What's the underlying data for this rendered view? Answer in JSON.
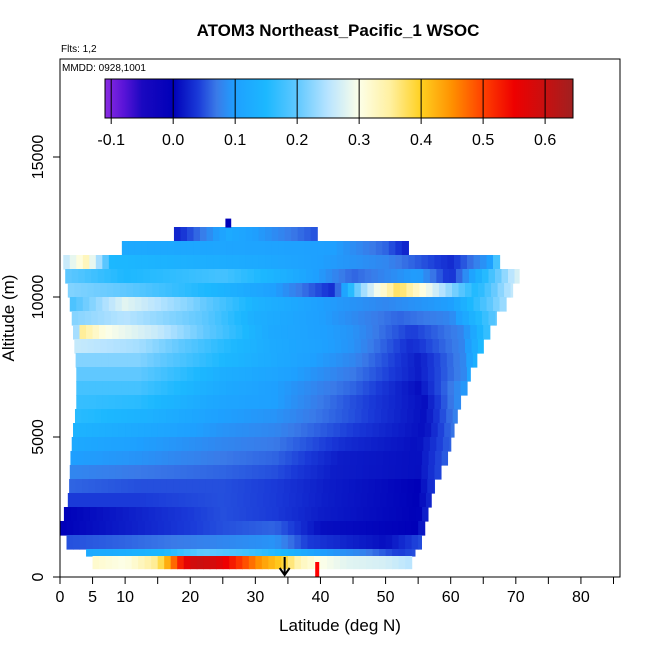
{
  "chart_data": {
    "type": "heatmap",
    "title": "ATOM3 Northeast_Pacific_1 WSOC",
    "subtitle_flights": "Flts: 1,2",
    "subtitle_dates": "MMDD: 0928,1001",
    "xlabel": "Latitude (deg N)",
    "ylabel": "Altitude (m)",
    "xlim": [
      0,
      86
    ],
    "ylim": [
      0,
      18500
    ],
    "x_ticks": [
      {
        "value": 0,
        "label": "0"
      },
      {
        "value": 5,
        "label": "5"
      },
      {
        "value": 10,
        "label": "10"
      },
      {
        "value": 20,
        "label": "20"
      },
      {
        "value": 30,
        "label": "30"
      },
      {
        "value": 40,
        "label": "40"
      },
      {
        "value": 50,
        "label": "50"
      },
      {
        "value": 60,
        "label": "60"
      },
      {
        "value": 70,
        "label": "70"
      },
      {
        "value": 80,
        "label": "80"
      }
    ],
    "x_minor_ticks": [
      15,
      25,
      35,
      45,
      55,
      65,
      75,
      85
    ],
    "y_ticks": [
      {
        "value": 0,
        "label": "0"
      },
      {
        "value": 5000,
        "label": "5000"
      },
      {
        "value": 10000,
        "label": "10000"
      },
      {
        "value": 15000,
        "label": "15000"
      }
    ],
    "colorbar": {
      "range": [
        -0.11,
        0.645
      ],
      "ticks": [
        {
          "value": -0.1,
          "label": "-0.1"
        },
        {
          "value": 0.0,
          "label": "0.0"
        },
        {
          "value": 0.1,
          "label": "0.1"
        },
        {
          "value": 0.2,
          "label": "0.2"
        },
        {
          "value": 0.3,
          "label": "0.3"
        },
        {
          "value": 0.4,
          "label": "0.4"
        },
        {
          "value": 0.5,
          "label": "0.5"
        },
        {
          "value": 0.6,
          "label": "0.6"
        }
      ],
      "stops": [
        [
          -0.11,
          "#8a2be2"
        ],
        [
          -0.08,
          "#5a14d8"
        ],
        [
          -0.05,
          "#1a08c0"
        ],
        [
          0.0,
          "#0000b8"
        ],
        [
          0.04,
          "#1a3ad8"
        ],
        [
          0.07,
          "#3a7ae8"
        ],
        [
          0.1,
          "#1ea0ff"
        ],
        [
          0.15,
          "#1cb8ff"
        ],
        [
          0.2,
          "#60c8ff"
        ],
        [
          0.25,
          "#b8e4ff"
        ],
        [
          0.3,
          "#fdffe8"
        ],
        [
          0.35,
          "#fff0a0"
        ],
        [
          0.4,
          "#ffd020"
        ],
        [
          0.45,
          "#ff9000"
        ],
        [
          0.5,
          "#ff4000"
        ],
        [
          0.55,
          "#ee0000"
        ],
        [
          0.6,
          "#c81010"
        ],
        [
          0.645,
          "#a02020"
        ]
      ]
    },
    "markers": {
      "arrow_lat": 34.5,
      "red_bar_lat": 39.5
    },
    "rows": [
      {
        "alt_min": 12000,
        "alt_max": 12500,
        "lat_min": 17.5,
        "lat_max": 39.5,
        "values": [
          [
            17.5,
            0.02
          ],
          [
            26,
            0.12
          ],
          [
            39.5,
            0.05
          ]
        ]
      },
      {
        "alt_min": 11500,
        "alt_max": 12000,
        "lat_min": 9.5,
        "lat_max": 53.5,
        "values": [
          [
            9.5,
            0.12
          ],
          [
            28,
            0.11
          ],
          [
            42,
            0.1
          ],
          [
            50,
            0.06
          ],
          [
            53.5,
            0.02
          ]
        ]
      },
      {
        "alt_min": 11000,
        "alt_max": 11500,
        "lat_min": 0.5,
        "lat_max": 67.5,
        "values": [
          [
            0.5,
            0.25
          ],
          [
            4,
            0.33
          ],
          [
            8,
            0.15
          ],
          [
            30,
            0.12
          ],
          [
            50,
            0.08
          ],
          [
            60,
            0.03
          ],
          [
            66,
            0.1
          ],
          [
            67.5,
            0.22
          ]
        ]
      },
      {
        "alt_min": 10500,
        "alt_max": 11000,
        "lat_min": 0.8,
        "lat_max": 70.5,
        "values": [
          [
            0.8,
            0.2
          ],
          [
            10,
            0.15
          ],
          [
            25,
            0.18
          ],
          [
            35,
            0.13
          ],
          [
            45,
            0.06
          ],
          [
            55,
            0.1
          ],
          [
            60,
            0.03
          ],
          [
            65,
            0.15
          ],
          [
            70.5,
            0.28
          ]
        ]
      },
      {
        "alt_min": 10000,
        "alt_max": 10500,
        "lat_min": 1.2,
        "lat_max": 69.5,
        "values": [
          [
            1.2,
            0.22
          ],
          [
            10,
            0.2
          ],
          [
            25,
            0.14
          ],
          [
            33,
            0.1
          ],
          [
            42,
            0.03
          ],
          [
            46,
            0.22
          ],
          [
            52,
            0.38
          ],
          [
            58,
            0.26
          ],
          [
            64,
            0.15
          ],
          [
            69.5,
            0.26
          ]
        ]
      },
      {
        "alt_min": 9500,
        "alt_max": 10000,
        "lat_min": 1.5,
        "lat_max": 68.5,
        "values": [
          [
            1.5,
            0.18
          ],
          [
            10,
            0.28
          ],
          [
            20,
            0.22
          ],
          [
            30,
            0.14
          ],
          [
            40,
            0.1
          ],
          [
            50,
            0.08
          ],
          [
            60,
            0.1
          ],
          [
            68.5,
            0.24
          ]
        ]
      },
      {
        "alt_min": 9000,
        "alt_max": 9500,
        "lat_min": 1.8,
        "lat_max": 67.0,
        "values": [
          [
            1.8,
            0.22
          ],
          [
            10,
            0.25
          ],
          [
            22,
            0.2
          ],
          [
            30,
            0.13
          ],
          [
            40,
            0.1
          ],
          [
            52,
            0.06
          ],
          [
            60,
            0.08
          ],
          [
            67.0,
            0.2
          ]
        ]
      },
      {
        "alt_min": 8500,
        "alt_max": 9000,
        "lat_min": 2.0,
        "lat_max": 66.0,
        "values": [
          [
            2.0,
            0.12
          ],
          [
            3,
            0.36
          ],
          [
            7,
            0.3
          ],
          [
            15,
            0.26
          ],
          [
            25,
            0.18
          ],
          [
            32,
            0.12
          ],
          [
            45,
            0.09
          ],
          [
            54,
            0.04
          ],
          [
            62,
            0.08
          ],
          [
            66.0,
            0.18
          ]
        ]
      },
      {
        "alt_min": 8000,
        "alt_max": 8500,
        "lat_min": 2.2,
        "lat_max": 65.0,
        "values": [
          [
            2.2,
            0.26
          ],
          [
            12,
            0.24
          ],
          [
            25,
            0.16
          ],
          [
            33,
            0.12
          ],
          [
            45,
            0.09
          ],
          [
            54,
            0.03
          ],
          [
            62,
            0.08
          ],
          [
            65.0,
            0.16
          ]
        ]
      },
      {
        "alt_min": 7500,
        "alt_max": 8000,
        "lat_min": 2.4,
        "lat_max": 64.0,
        "values": [
          [
            2.4,
            0.22
          ],
          [
            12,
            0.22
          ],
          [
            25,
            0.15
          ],
          [
            33,
            0.12
          ],
          [
            45,
            0.08
          ],
          [
            55,
            0.02
          ],
          [
            62,
            0.08
          ],
          [
            64.0,
            0.14
          ]
        ]
      },
      {
        "alt_min": 7000,
        "alt_max": 7500,
        "lat_min": 2.5,
        "lat_max": 63.0,
        "values": [
          [
            2.5,
            0.2
          ],
          [
            12,
            0.2
          ],
          [
            25,
            0.13
          ],
          [
            33,
            0.11
          ],
          [
            45,
            0.07
          ],
          [
            55,
            0.02
          ],
          [
            62,
            0.08
          ],
          [
            63.0,
            0.12
          ]
        ]
      },
      {
        "alt_min": 6500,
        "alt_max": 7000,
        "lat_min": 2.5,
        "lat_max": 62.5,
        "values": [
          [
            2.5,
            0.18
          ],
          [
            12,
            0.18
          ],
          [
            25,
            0.12
          ],
          [
            33,
            0.1
          ],
          [
            45,
            0.06
          ],
          [
            55,
            0.01
          ],
          [
            62.5,
            0.1
          ]
        ]
      },
      {
        "alt_min": 6000,
        "alt_max": 6500,
        "lat_min": 2.5,
        "lat_max": 61.5,
        "values": [
          [
            2.5,
            0.17
          ],
          [
            12,
            0.16
          ],
          [
            25,
            0.11
          ],
          [
            33,
            0.1
          ],
          [
            45,
            0.05
          ],
          [
            56,
            0.01
          ],
          [
            61.5,
            0.09
          ]
        ]
      },
      {
        "alt_min": 5500,
        "alt_max": 6000,
        "lat_min": 2.3,
        "lat_max": 61.0,
        "values": [
          [
            2.3,
            0.16
          ],
          [
            12,
            0.14
          ],
          [
            25,
            0.1
          ],
          [
            33,
            0.09
          ],
          [
            45,
            0.05
          ],
          [
            56,
            0.01
          ],
          [
            61.0,
            0.08
          ]
        ]
      },
      {
        "alt_min": 5000,
        "alt_max": 5500,
        "lat_min": 2.0,
        "lat_max": 60.5,
        "values": [
          [
            2.0,
            0.14
          ],
          [
            12,
            0.12
          ],
          [
            25,
            0.09
          ],
          [
            33,
            0.08
          ],
          [
            45,
            0.04
          ],
          [
            56,
            0.01
          ],
          [
            60.5,
            0.07
          ]
        ]
      },
      {
        "alt_min": 4500,
        "alt_max": 5000,
        "lat_min": 1.8,
        "lat_max": 60.0,
        "values": [
          [
            1.8,
            0.12
          ],
          [
            12,
            0.1
          ],
          [
            25,
            0.08
          ],
          [
            33,
            0.07
          ],
          [
            44,
            0.03
          ],
          [
            55,
            0.01
          ],
          [
            60.0,
            0.06
          ]
        ]
      },
      {
        "alt_min": 4000,
        "alt_max": 4500,
        "lat_min": 1.6,
        "lat_max": 59.5,
        "values": [
          [
            1.6,
            0.1
          ],
          [
            12,
            0.09
          ],
          [
            25,
            0.07
          ],
          [
            33,
            0.06
          ],
          [
            43,
            0.02
          ],
          [
            55,
            0.01
          ],
          [
            59.5,
            0.06
          ]
        ]
      },
      {
        "alt_min": 3500,
        "alt_max": 4000,
        "lat_min": 1.5,
        "lat_max": 58.5,
        "values": [
          [
            1.5,
            0.08
          ],
          [
            12,
            0.07
          ],
          [
            25,
            0.06
          ],
          [
            33,
            0.05
          ],
          [
            42,
            0.02
          ],
          [
            55,
            0.01
          ],
          [
            58.5,
            0.05
          ]
        ]
      },
      {
        "alt_min": 3000,
        "alt_max": 3500,
        "lat_min": 1.4,
        "lat_max": 57.5,
        "values": [
          [
            1.4,
            0.06
          ],
          [
            12,
            0.05
          ],
          [
            25,
            0.05
          ],
          [
            33,
            0.04
          ],
          [
            41,
            0.02
          ],
          [
            55,
            0.0
          ],
          [
            57.5,
            0.04
          ]
        ]
      },
      {
        "alt_min": 2500,
        "alt_max": 3000,
        "lat_min": 1.2,
        "lat_max": 57.0,
        "values": [
          [
            1.2,
            0.04
          ],
          [
            12,
            0.04
          ],
          [
            25,
            0.05
          ],
          [
            33,
            0.04
          ],
          [
            41,
            0.02
          ],
          [
            55,
            0.0
          ],
          [
            57.0,
            0.03
          ]
        ]
      },
      {
        "alt_min": 2000,
        "alt_max": 2500,
        "lat_min": 0.6,
        "lat_max": 56.5,
        "values": [
          [
            0.6,
            0.0
          ],
          [
            10,
            0.02
          ],
          [
            25,
            0.05
          ],
          [
            33,
            0.04
          ],
          [
            40,
            0.02
          ],
          [
            55,
            0.0
          ],
          [
            56.5,
            0.03
          ]
        ]
      },
      {
        "alt_min": 1500,
        "alt_max": 2000,
        "lat_min": 0.0,
        "lat_max": 56.0,
        "values": [
          [
            0.0,
            0.0
          ],
          [
            10,
            0.02
          ],
          [
            25,
            0.05
          ],
          [
            33,
            0.06
          ],
          [
            40,
            0.01
          ],
          [
            55,
            0.0
          ],
          [
            56.0,
            0.03
          ]
        ]
      },
      {
        "alt_min": 1000,
        "alt_max": 1500,
        "lat_min": 1.0,
        "lat_max": 55.5,
        "values": [
          [
            1.0,
            0.05
          ],
          [
            10,
            0.06
          ],
          [
            25,
            0.08
          ],
          [
            33,
            0.09
          ],
          [
            38,
            0.04
          ],
          [
            50,
            0.01
          ],
          [
            55.5,
            0.05
          ]
        ]
      },
      {
        "alt_min": 750,
        "alt_max": 1000,
        "lat_min": 4.0,
        "lat_max": 54.5,
        "values": [
          [
            4.0,
            0.12
          ],
          [
            10,
            0.13
          ],
          [
            16,
            0.15
          ],
          [
            22,
            0.2
          ],
          [
            28,
            0.18
          ],
          [
            34,
            0.15
          ],
          [
            40,
            0.1
          ],
          [
            46,
            0.08
          ],
          [
            52,
            0.04
          ],
          [
            54.5,
            0.05
          ]
        ]
      },
      {
        "alt_min": 300,
        "alt_max": 750,
        "lat_min": 5.0,
        "lat_max": 54.0,
        "values": [
          [
            5.0,
            0.32
          ],
          [
            10,
            0.3
          ],
          [
            15,
            0.36
          ],
          [
            17,
            0.45
          ],
          [
            19,
            0.55
          ],
          [
            21,
            0.6
          ],
          [
            24,
            0.58
          ],
          [
            28,
            0.5
          ],
          [
            31,
            0.44
          ],
          [
            34,
            0.4
          ],
          [
            37,
            0.33
          ],
          [
            40,
            0.3
          ],
          [
            44,
            0.28
          ],
          [
            50,
            0.27
          ],
          [
            54.0,
            0.25
          ]
        ]
      },
      {
        "alt_min": 12500,
        "alt_max": 12800,
        "lat_min": 25.4,
        "lat_max": 26.2,
        "values": [
          [
            25.4,
            0.0
          ],
          [
            26.2,
            0.0
          ]
        ]
      }
    ]
  }
}
